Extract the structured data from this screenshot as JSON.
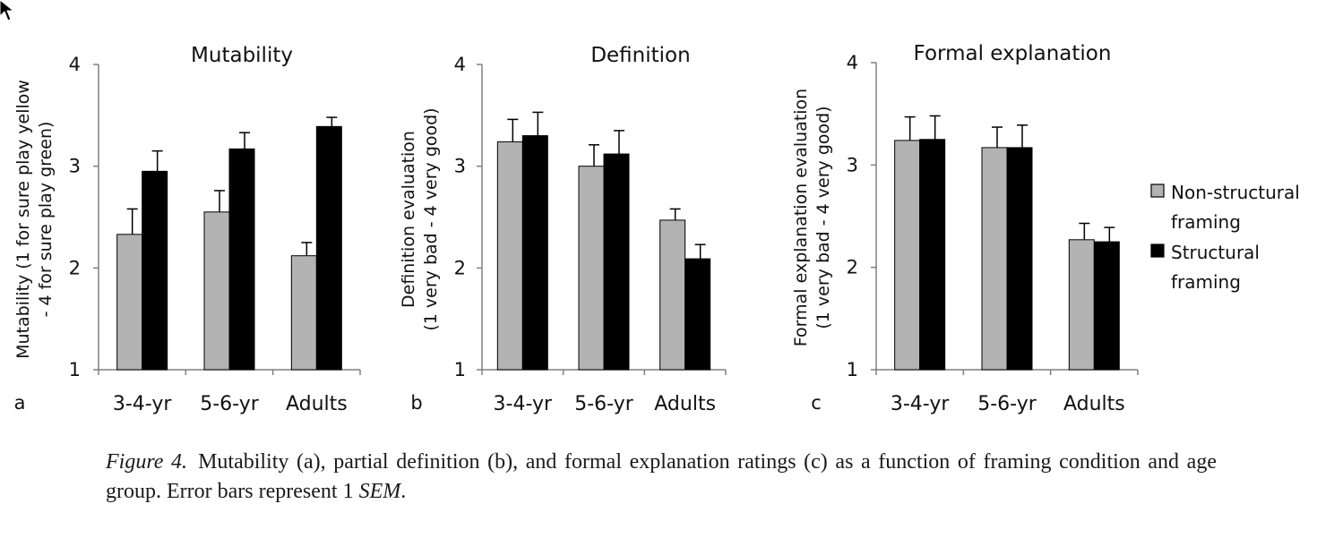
{
  "chart_data": [
    {
      "type": "bar",
      "panel_label": "a",
      "title": "Mutability",
      "ylabel": [
        "Mutability (1 for sure play yellow",
        "- 4 for sure play green)"
      ],
      "categories": [
        "3-4-yr",
        "5-6-yr",
        "Adults"
      ],
      "ylim": [
        1,
        4
      ],
      "yticks": [
        "1",
        "2",
        "3",
        "4"
      ],
      "series": [
        {
          "name": "Non-structural framing",
          "values": [
            2.33,
            2.55,
            2.12
          ],
          "errors": [
            0.25,
            0.21,
            0.13
          ]
        },
        {
          "name": "Structural framing",
          "values": [
            2.95,
            3.17,
            3.39
          ],
          "errors": [
            0.2,
            0.16,
            0.09
          ]
        }
      ]
    },
    {
      "type": "bar",
      "panel_label": "b",
      "title": "Definition",
      "ylabel": [
        "Definition evaluation",
        "(1 very bad - 4 very good)"
      ],
      "categories": [
        "3-4-yr",
        "5-6-yr",
        "Adults"
      ],
      "ylim": [
        1,
        4
      ],
      "yticks": [
        "1",
        "2",
        "3",
        "4"
      ],
      "series": [
        {
          "name": "Non-structural framing",
          "values": [
            3.24,
            3.0,
            2.47
          ],
          "errors": [
            0.22,
            0.21,
            0.11
          ]
        },
        {
          "name": "Structural framing",
          "values": [
            3.3,
            3.12,
            2.09
          ],
          "errors": [
            0.23,
            0.23,
            0.14
          ]
        }
      ]
    },
    {
      "type": "bar",
      "panel_label": "c",
      "title": "Formal explanation",
      "ylabel": [
        "Formal explanation evaluation",
        "(1 very bad - 4 very good)"
      ],
      "categories": [
        "3-4-yr",
        "5-6-yr",
        "Adults"
      ],
      "ylim": [
        1,
        4
      ],
      "yticks": [
        "1",
        "2",
        "3",
        "4"
      ],
      "series": [
        {
          "name": "Non-structural framing",
          "values": [
            3.24,
            3.17,
            2.27
          ],
          "errors": [
            0.23,
            0.2,
            0.16
          ]
        },
        {
          "name": "Structural framing",
          "values": [
            3.25,
            3.17,
            2.25
          ],
          "errors": [
            0.23,
            0.22,
            0.14
          ]
        }
      ]
    }
  ],
  "legend": {
    "placement": "right",
    "items": [
      {
        "lines": [
          "Non-structural",
          "framing"
        ],
        "color": "#b3b3b3"
      },
      {
        "lines": [
          "Structural",
          "framing"
        ],
        "color": "#000000"
      }
    ]
  },
  "colors": {
    "non_structural": "#b3b3b3",
    "structural": "#000000",
    "axis": "#808080"
  },
  "caption": {
    "figure_label": "Figure 4.",
    "text_1": "Mutability (a), partial definition (b), and formal explanation ratings (c) as a function of framing condition and age group. Error bars represent 1 ",
    "italic": "SEM",
    "text_2": "."
  }
}
